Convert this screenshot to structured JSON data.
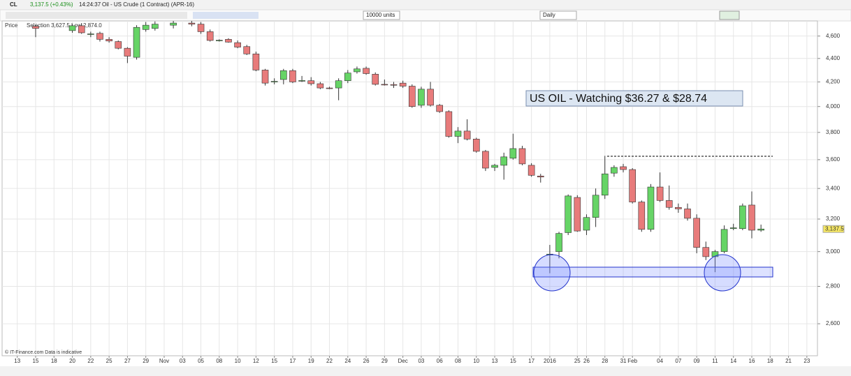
{
  "toolbar": {
    "symbol": "CL",
    "quote": "3,137.5 (+0.43%)",
    "time": "14:24:37",
    "instrument": "Oil - US Crude (1 Contract) (APR-16)",
    "units": "10000 units",
    "period": "Daily"
  },
  "footer": "© IT-Finance.com  Data is indicative",
  "chart_data": {
    "type": "candlestick",
    "legend": {
      "label": "Price",
      "range": "Selection 3,627.5 Low 2,874.0"
    },
    "annotation": "US OIL - Watching $36.27 & $28.74",
    "log_scale": true,
    "grid": true,
    "up_color": "#66d466",
    "down_color": "#e87b7b",
    "last_price": {
      "value": 3137.5,
      "label": "3,137.5"
    },
    "ylim": [
      2440,
      4740
    ],
    "yticks": [
      {
        "value": 2600,
        "label": "2,600"
      },
      {
        "value": 2800,
        "label": "2,800"
      },
      {
        "value": 3000,
        "label": "3,000"
      },
      {
        "value": 3200,
        "label": "3,200"
      },
      {
        "value": 3400,
        "label": "3,400"
      },
      {
        "value": 3600,
        "label": "3,600"
      },
      {
        "value": 3800,
        "label": "3,800"
      },
      {
        "value": 4000,
        "label": "4,000"
      },
      {
        "value": 4200,
        "label": "4,200"
      },
      {
        "value": 4400,
        "label": "4,400"
      },
      {
        "value": 4600,
        "label": "4,600"
      }
    ],
    "xlim": [
      -1.5,
      87
    ],
    "xticks": [
      {
        "value": 0,
        "label": "13"
      },
      {
        "value": 2,
        "label": "15"
      },
      {
        "value": 4,
        "label": "18"
      },
      {
        "value": 6,
        "label": "20"
      },
      {
        "value": 8,
        "label": "22"
      },
      {
        "value": 10,
        "label": "25"
      },
      {
        "value": 12,
        "label": "27"
      },
      {
        "value": 14,
        "label": "29"
      },
      {
        "value": 16,
        "label": "Nov"
      },
      {
        "value": 18,
        "label": "03"
      },
      {
        "value": 20,
        "label": "05"
      },
      {
        "value": 22,
        "label": "08"
      },
      {
        "value": 24,
        "label": "10"
      },
      {
        "value": 26,
        "label": "12"
      },
      {
        "value": 28,
        "label": "15"
      },
      {
        "value": 30,
        "label": "17"
      },
      {
        "value": 32,
        "label": "19"
      },
      {
        "value": 34,
        "label": "22"
      },
      {
        "value": 36,
        "label": "24"
      },
      {
        "value": 38,
        "label": "26"
      },
      {
        "value": 40,
        "label": "29"
      },
      {
        "value": 42,
        "label": "Dec"
      },
      {
        "value": 44,
        "label": "03"
      },
      {
        "value": 46,
        "label": "06"
      },
      {
        "value": 48,
        "label": "08"
      },
      {
        "value": 50,
        "label": "10"
      },
      {
        "value": 52,
        "label": "13"
      },
      {
        "value": 54,
        "label": "15"
      },
      {
        "value": 56,
        "label": "17"
      },
      {
        "value": 58,
        "label": "2016"
      },
      {
        "value": 61,
        "label": "25"
      },
      {
        "value": 62,
        "label": "26"
      },
      {
        "value": 64,
        "label": "28"
      },
      {
        "value": 66,
        "label": "31"
      },
      {
        "value": 67,
        "label": "Feb"
      },
      {
        "value": 70,
        "label": "04"
      },
      {
        "value": 72,
        "label": "07"
      },
      {
        "value": 74,
        "label": "09"
      },
      {
        "value": 76,
        "label": "11"
      },
      {
        "value": 78,
        "label": "14"
      },
      {
        "value": 80,
        "label": "16"
      },
      {
        "value": 82,
        "label": "18"
      },
      {
        "value": 84,
        "label": "21"
      },
      {
        "value": 86,
        "label": "23"
      }
    ],
    "candles": {
      "x": [
        2,
        6,
        7,
        8,
        9,
        10,
        11,
        12,
        13,
        14,
        15,
        17,
        19,
        20,
        21,
        22,
        23,
        24,
        25,
        26,
        27,
        28,
        29,
        30,
        31,
        32,
        33,
        34,
        35,
        36,
        37,
        38,
        39,
        40,
        41,
        42,
        43,
        44,
        45,
        46,
        47,
        48,
        49,
        50,
        51,
        52,
        53,
        54,
        55,
        56,
        57,
        58,
        59,
        60,
        61,
        62,
        63,
        64,
        65,
        66,
        67,
        68,
        69,
        70,
        71,
        72,
        73,
        74,
        75,
        76,
        77,
        78,
        79,
        80,
        81
      ],
      "open": [
        4690,
        4650,
        4695,
        4615,
        4625,
        4570,
        4550,
        4490,
        4410,
        4660,
        4670,
        4700,
        4720,
        4710,
        4640,
        4560,
        4570,
        4540,
        4505,
        4440,
        4300,
        4200,
        4220,
        4295,
        4210,
        4210,
        4185,
        4150,
        4150,
        4210,
        4285,
        4315,
        4265,
        4180,
        4178,
        4190,
        4165,
        4010,
        4140,
        4010,
        3960,
        3770,
        3810,
        3750,
        3660,
        3545,
        3560,
        3610,
        3680,
        3560,
        3485,
        2980,
        3000,
        3115,
        3340,
        3130,
        3210,
        3355,
        3505,
        3550,
        3530,
        3310,
        3135,
        3410,
        3320,
        3275,
        3265,
        3205,
        3025,
        2970,
        3000,
        3140,
        3140,
        3290,
        3130
      ],
      "high": [
        4700,
        4710,
        4720,
        4640,
        4640,
        4590,
        4560,
        4500,
        4700,
        4730,
        4735,
        4740,
        4740,
        4730,
        4660,
        4570,
        4580,
        4560,
        4520,
        4460,
        4310,
        4230,
        4310,
        4310,
        4250,
        4240,
        4200,
        4160,
        4230,
        4300,
        4330,
        4330,
        4280,
        4220,
        4200,
        4210,
        4180,
        4160,
        4200,
        4020,
        3970,
        3840,
        3900,
        3760,
        3670,
        3570,
        3650,
        3790,
        3700,
        3575,
        3500,
        3040,
        3120,
        3360,
        3355,
        3230,
        3400,
        3627.5,
        3560,
        3570,
        3540,
        3320,
        3430,
        3510,
        3420,
        3300,
        3300,
        3230,
        3060,
        3010,
        3160,
        3170,
        3300,
        3380,
        3165
      ],
      "low": [
        4590,
        4630,
        4620,
        4590,
        4550,
        4540,
        4480,
        4360,
        4390,
        4640,
        4650,
        4670,
        4690,
        4620,
        4550,
        4550,
        4540,
        4490,
        4430,
        4290,
        4170,
        4180,
        4180,
        4190,
        4200,
        4170,
        4140,
        4140,
        4050,
        4190,
        4270,
        4260,
        4170,
        4170,
        4150,
        4150,
        3990,
        3990,
        4000,
        3950,
        3760,
        3720,
        3740,
        3650,
        3520,
        3520,
        3460,
        3600,
        3560,
        3480,
        3440,
        2874,
        2960,
        3100,
        3120,
        3100,
        3150,
        3330,
        3480,
        3510,
        3300,
        3120,
        3120,
        3310,
        3260,
        3240,
        3190,
        2990,
        2950,
        2880,
        2990,
        3130,
        3130,
        3080,
        3120
      ],
      "close": [
        4670,
        4695,
        4630,
        4620,
        4570,
        4555,
        4490,
        4420,
        4680,
        4700,
        4710,
        4720,
        4710,
        4640,
        4560,
        4562,
        4545,
        4500,
        4440,
        4300,
        4190,
        4205,
        4295,
        4200,
        4212,
        4185,
        4150,
        4148,
        4210,
        4275,
        4310,
        4270,
        4180,
        4178,
        4175,
        4165,
        4000,
        4140,
        4010,
        3960,
        3770,
        3810,
        3750,
        3660,
        3540,
        3560,
        3620,
        3680,
        3570,
        3490,
        3478,
        2985,
        3110,
        3350,
        3125,
        3210,
        3355,
        3500,
        3545,
        3530,
        3310,
        3135,
        3410,
        3320,
        3275,
        3265,
        3205,
        3025,
        2970,
        3000,
        3135,
        3145,
        3285,
        3130,
        3137.5
      ]
    }
  }
}
